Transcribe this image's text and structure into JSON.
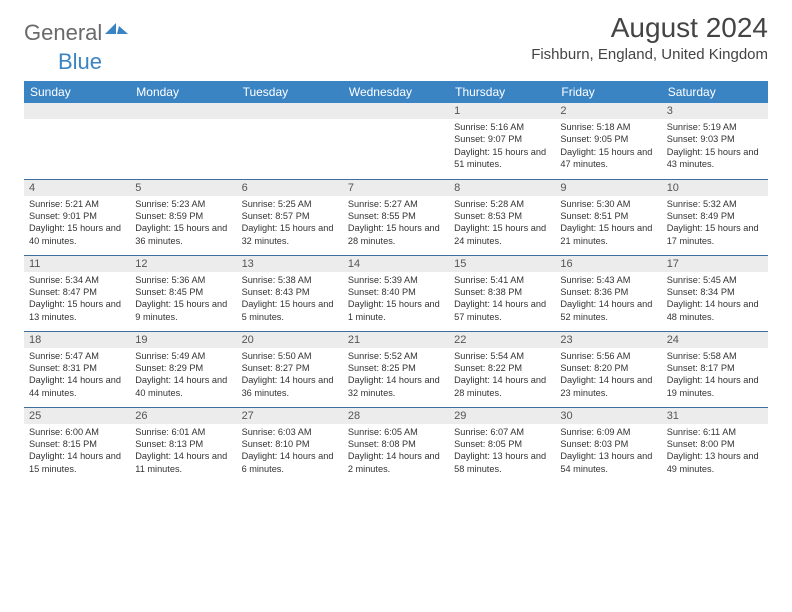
{
  "brand": {
    "general": "General",
    "blue": "Blue",
    "logo_color": "#3b84c4"
  },
  "title": "August 2024",
  "location": "Fishburn, England, United Kingdom",
  "header_bg": "#3b84c4",
  "daynum_bg": "#ececec",
  "border_color": "#3b6fa0",
  "days_of_week": [
    "Sunday",
    "Monday",
    "Tuesday",
    "Wednesday",
    "Thursday",
    "Friday",
    "Saturday"
  ],
  "weeks": [
    [
      null,
      null,
      null,
      null,
      {
        "num": "1",
        "sunrise": "5:16 AM",
        "sunset": "9:07 PM",
        "daylight": "15 hours and 51 minutes."
      },
      {
        "num": "2",
        "sunrise": "5:18 AM",
        "sunset": "9:05 PM",
        "daylight": "15 hours and 47 minutes."
      },
      {
        "num": "3",
        "sunrise": "5:19 AM",
        "sunset": "9:03 PM",
        "daylight": "15 hours and 43 minutes."
      }
    ],
    [
      {
        "num": "4",
        "sunrise": "5:21 AM",
        "sunset": "9:01 PM",
        "daylight": "15 hours and 40 minutes."
      },
      {
        "num": "5",
        "sunrise": "5:23 AM",
        "sunset": "8:59 PM",
        "daylight": "15 hours and 36 minutes."
      },
      {
        "num": "6",
        "sunrise": "5:25 AM",
        "sunset": "8:57 PM",
        "daylight": "15 hours and 32 minutes."
      },
      {
        "num": "7",
        "sunrise": "5:27 AM",
        "sunset": "8:55 PM",
        "daylight": "15 hours and 28 minutes."
      },
      {
        "num": "8",
        "sunrise": "5:28 AM",
        "sunset": "8:53 PM",
        "daylight": "15 hours and 24 minutes."
      },
      {
        "num": "9",
        "sunrise": "5:30 AM",
        "sunset": "8:51 PM",
        "daylight": "15 hours and 21 minutes."
      },
      {
        "num": "10",
        "sunrise": "5:32 AM",
        "sunset": "8:49 PM",
        "daylight": "15 hours and 17 minutes."
      }
    ],
    [
      {
        "num": "11",
        "sunrise": "5:34 AM",
        "sunset": "8:47 PM",
        "daylight": "15 hours and 13 minutes."
      },
      {
        "num": "12",
        "sunrise": "5:36 AM",
        "sunset": "8:45 PM",
        "daylight": "15 hours and 9 minutes."
      },
      {
        "num": "13",
        "sunrise": "5:38 AM",
        "sunset": "8:43 PM",
        "daylight": "15 hours and 5 minutes."
      },
      {
        "num": "14",
        "sunrise": "5:39 AM",
        "sunset": "8:40 PM",
        "daylight": "15 hours and 1 minute."
      },
      {
        "num": "15",
        "sunrise": "5:41 AM",
        "sunset": "8:38 PM",
        "daylight": "14 hours and 57 minutes."
      },
      {
        "num": "16",
        "sunrise": "5:43 AM",
        "sunset": "8:36 PM",
        "daylight": "14 hours and 52 minutes."
      },
      {
        "num": "17",
        "sunrise": "5:45 AM",
        "sunset": "8:34 PM",
        "daylight": "14 hours and 48 minutes."
      }
    ],
    [
      {
        "num": "18",
        "sunrise": "5:47 AM",
        "sunset": "8:31 PM",
        "daylight": "14 hours and 44 minutes."
      },
      {
        "num": "19",
        "sunrise": "5:49 AM",
        "sunset": "8:29 PM",
        "daylight": "14 hours and 40 minutes."
      },
      {
        "num": "20",
        "sunrise": "5:50 AM",
        "sunset": "8:27 PM",
        "daylight": "14 hours and 36 minutes."
      },
      {
        "num": "21",
        "sunrise": "5:52 AM",
        "sunset": "8:25 PM",
        "daylight": "14 hours and 32 minutes."
      },
      {
        "num": "22",
        "sunrise": "5:54 AM",
        "sunset": "8:22 PM",
        "daylight": "14 hours and 28 minutes."
      },
      {
        "num": "23",
        "sunrise": "5:56 AM",
        "sunset": "8:20 PM",
        "daylight": "14 hours and 23 minutes."
      },
      {
        "num": "24",
        "sunrise": "5:58 AM",
        "sunset": "8:17 PM",
        "daylight": "14 hours and 19 minutes."
      }
    ],
    [
      {
        "num": "25",
        "sunrise": "6:00 AM",
        "sunset": "8:15 PM",
        "daylight": "14 hours and 15 minutes."
      },
      {
        "num": "26",
        "sunrise": "6:01 AM",
        "sunset": "8:13 PM",
        "daylight": "14 hours and 11 minutes."
      },
      {
        "num": "27",
        "sunrise": "6:03 AM",
        "sunset": "8:10 PM",
        "daylight": "14 hours and 6 minutes."
      },
      {
        "num": "28",
        "sunrise": "6:05 AM",
        "sunset": "8:08 PM",
        "daylight": "14 hours and 2 minutes."
      },
      {
        "num": "29",
        "sunrise": "6:07 AM",
        "sunset": "8:05 PM",
        "daylight": "13 hours and 58 minutes."
      },
      {
        "num": "30",
        "sunrise": "6:09 AM",
        "sunset": "8:03 PM",
        "daylight": "13 hours and 54 minutes."
      },
      {
        "num": "31",
        "sunrise": "6:11 AM",
        "sunset": "8:00 PM",
        "daylight": "13 hours and 49 minutes."
      }
    ]
  ]
}
